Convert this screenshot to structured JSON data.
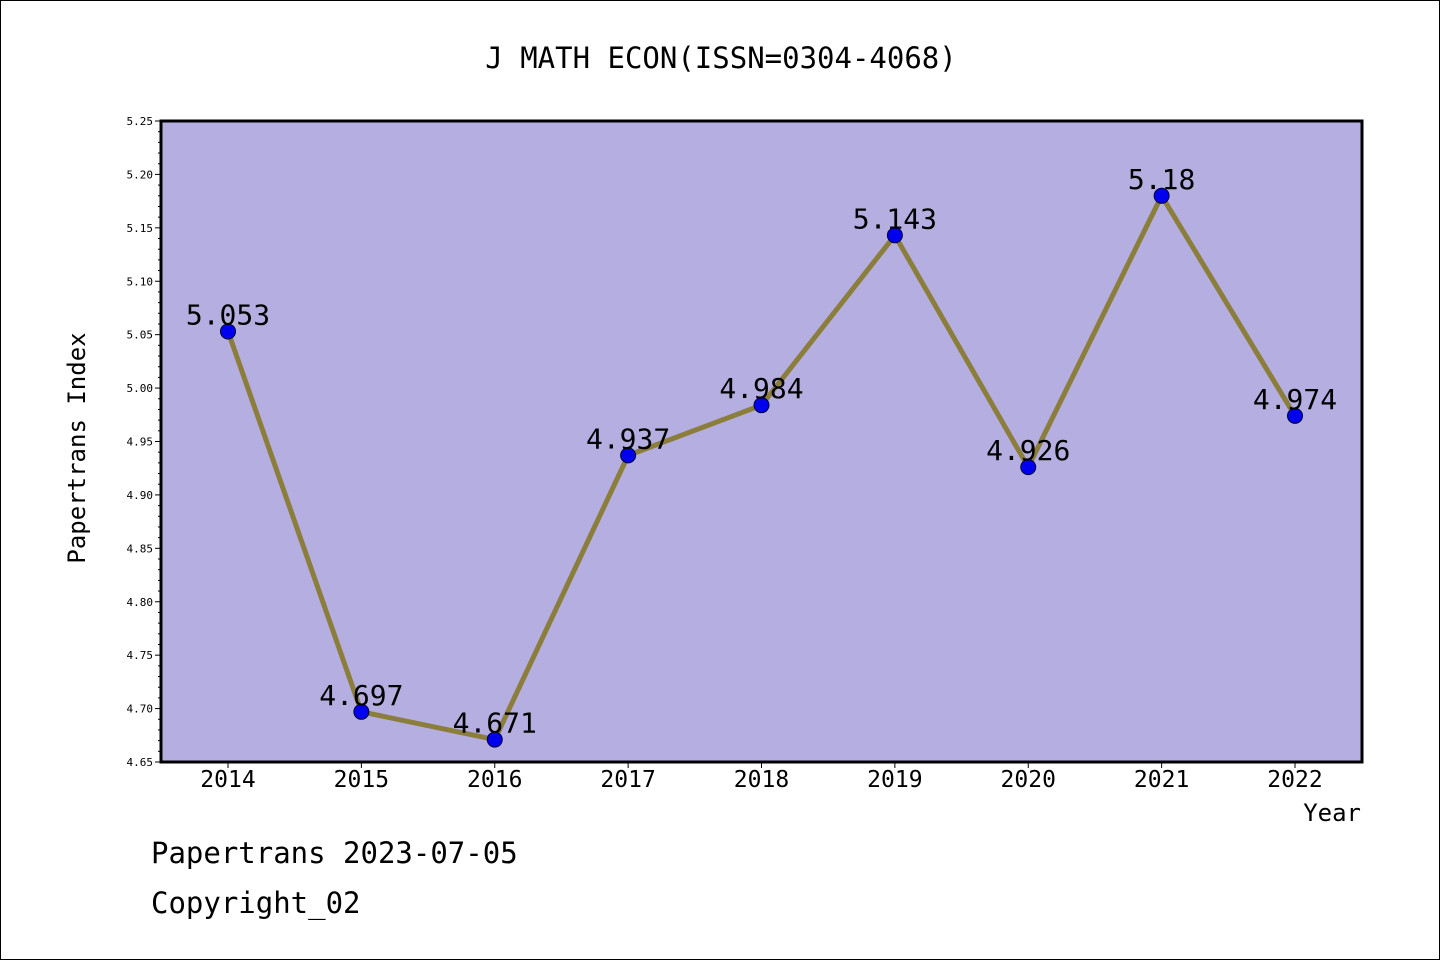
{
  "chart_data": {
    "type": "line",
    "title": "J MATH ECON(ISSN=0304-4068)",
    "xlabel": "Year",
    "ylabel": "Papertrans Index",
    "categories": [
      "2014",
      "2015",
      "2016",
      "2017",
      "2018",
      "2019",
      "2020",
      "2021",
      "2022"
    ],
    "series": [
      {
        "values": [
          5.053,
          4.697,
          4.671,
          4.937,
          4.984,
          5.143,
          4.926,
          5.18,
          4.974
        ],
        "labels": [
          "5.053",
          "4.697",
          "4.671",
          "4.937",
          "4.984",
          "5.143",
          "4.926",
          "5.18",
          "4.974"
        ]
      }
    ],
    "ylim": [
      4.65,
      5.25
    ],
    "yticks": [
      "4.65",
      "4.70",
      "4.75",
      "4.80",
      "4.85",
      "4.90",
      "4.95",
      "5.00",
      "5.05",
      "5.10",
      "5.15",
      "5.20",
      "5.25"
    ],
    "grid": false,
    "legend": "none",
    "colors": {
      "plot_background": "#b5aee0",
      "line": "#8b7d3a",
      "marker": "#0000ee",
      "marker_edge": "#000033"
    }
  },
  "footer": {
    "line1": "Papertrans 2023-07-05",
    "line2": "Copyright_02"
  }
}
